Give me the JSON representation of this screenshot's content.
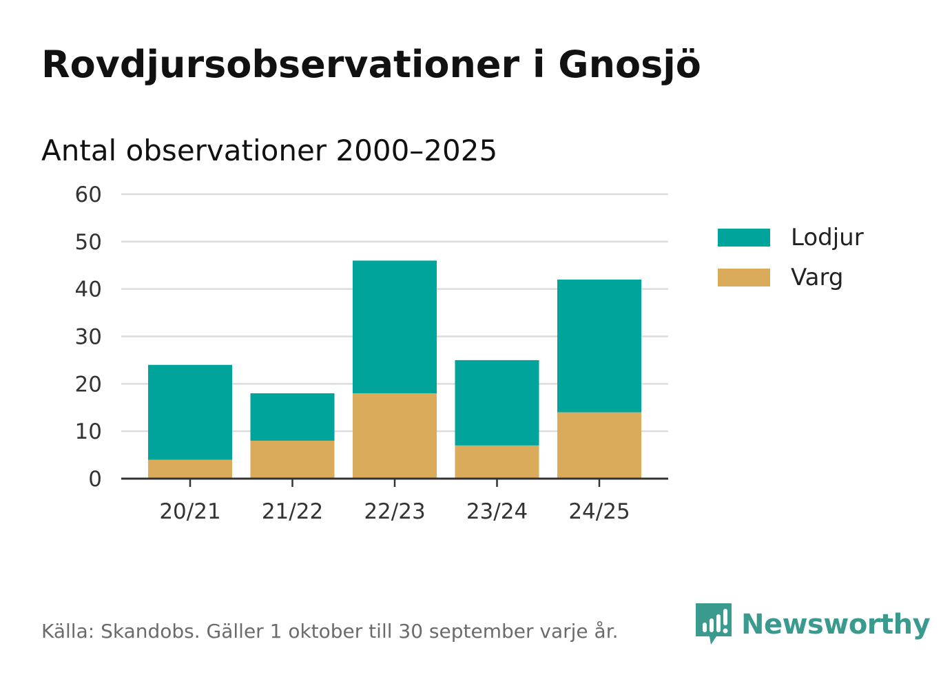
{
  "header": {
    "title": "Rovdjursobservationer i Gnosjö",
    "subtitle": "Antal observationer 2000–2025"
  },
  "chart_data": {
    "type": "bar",
    "stacked": true,
    "categories": [
      "20/21",
      "21/22",
      "22/23",
      "23/24",
      "24/25"
    ],
    "series": [
      {
        "name": "Varg",
        "values": [
          4,
          8,
          18,
          7,
          14
        ],
        "color": "#d9ab5b"
      },
      {
        "name": "Lodjur",
        "values": [
          20,
          10,
          28,
          18,
          28
        ],
        "color": "#00a49b"
      }
    ],
    "ylim": [
      0,
      60
    ],
    "yticks": [
      0,
      10,
      20,
      30,
      40,
      50,
      60
    ],
    "grid": true,
    "legend": "right",
    "legend_order": [
      "Lodjur",
      "Varg"
    ]
  },
  "legend": {
    "items": [
      {
        "label": "Lodjur",
        "color": "#00a49b"
      },
      {
        "label": "Varg",
        "color": "#d9ab5b"
      }
    ]
  },
  "footer": {
    "source": "Källa: Skandobs. Gäller 1 oktober till 30 september varje år."
  },
  "logo": {
    "text": "Newsworthy",
    "icon": "newsworthy-logo-icon",
    "color": "#3a9a8e"
  }
}
